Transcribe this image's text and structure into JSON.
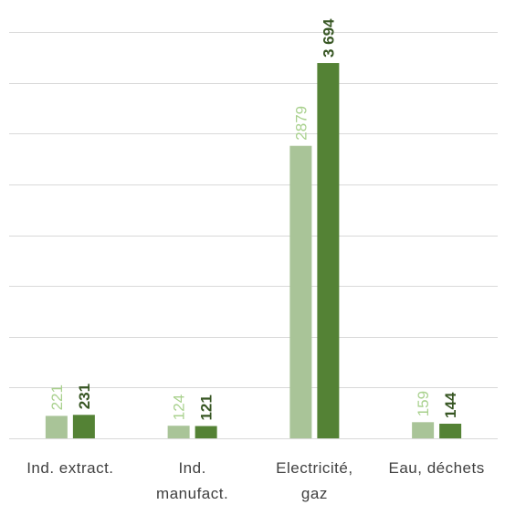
{
  "chart_data": {
    "type": "bar",
    "categories": [
      [
        "Ind. extract."
      ],
      [
        "Ind.",
        "manufact."
      ],
      [
        "Electricité,",
        "gaz"
      ],
      [
        "Eau, déchets"
      ]
    ],
    "series": [
      {
        "values": [
          221,
          124,
          2879,
          159
        ],
        "labels": [
          "221",
          "124",
          "2879",
          "159"
        ],
        "color": "#a9c498",
        "label_color": "#a9d18e",
        "label_bold": false
      },
      {
        "values": [
          231,
          121,
          3694,
          144
        ],
        "labels": [
          "231",
          "121",
          "3 694",
          "144"
        ],
        "color": "#548235",
        "label_color": "#375623",
        "label_bold": true
      }
    ],
    "ylim": [
      0,
      4000
    ],
    "grid": true,
    "gridline_color": "#d9d9d9",
    "legend": "none"
  }
}
